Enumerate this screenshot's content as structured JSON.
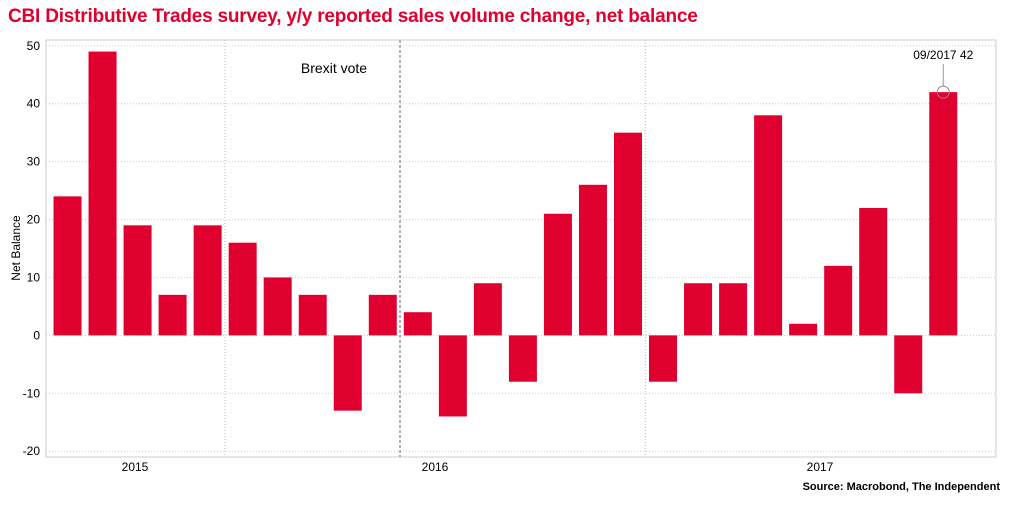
{
  "title": "CBI Distributive Trades survey, y/y reported sales volume change, net balance",
  "source": "Source: Macrobond, The Independent",
  "colors": {
    "bar": "#e0002f",
    "title": "#e0002f",
    "grid": "#cccccc",
    "event_line": "#999999"
  },
  "chart_data": {
    "type": "bar",
    "title": "CBI Distributive Trades survey, y/y reported sales volume change, net balance",
    "ylabel": "Net Balance",
    "xlabel": "",
    "ylim": [
      -21,
      51
    ],
    "yticks": [
      -20,
      -10,
      0,
      10,
      20,
      30,
      40,
      50
    ],
    "grid": true,
    "series": [
      {
        "values": [
          24,
          49,
          19,
          7,
          19,
          16,
          10,
          7,
          -13,
          7,
          4,
          -14,
          9,
          -8,
          21,
          26,
          35,
          -8,
          9,
          9,
          38,
          2,
          12,
          22,
          -10,
          42
        ]
      }
    ],
    "year_labels": [
      "2015",
      "2016",
      "2017"
    ],
    "annotations": {
      "event_label": "Brexit vote",
      "last_point_label": "09/2017 42"
    }
  }
}
